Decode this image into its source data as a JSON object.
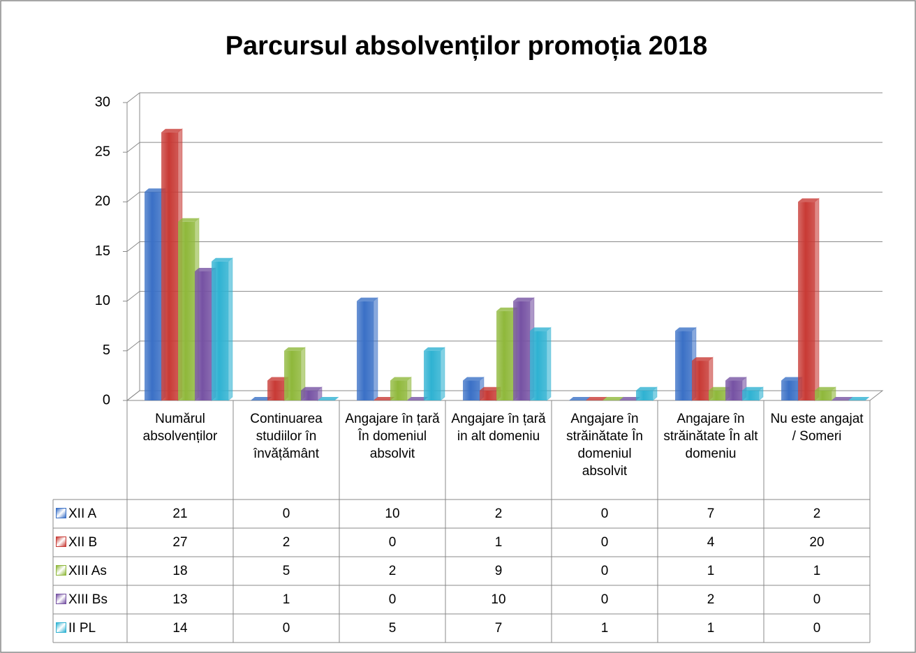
{
  "chart_data": {
    "type": "bar",
    "title": "Parcursul absolvenților  promoția 2018",
    "categories": [
      "Numărul absolvenților",
      "Continuarea studiilor în învățământ",
      "Angajare în țară În domeniul absolvit",
      "Angajare în țară in alt domeniu",
      "Angajare în străinătate În domeniul absolvit",
      "Angajare în străinătate În alt domeniu",
      "Nu este angajat / Someri"
    ],
    "series": [
      {
        "name": "XII A",
        "color": "#3a70c6",
        "values": [
          21,
          0,
          10,
          2,
          0,
          7,
          2
        ]
      },
      {
        "name": "XII B",
        "color": "#c83a35",
        "values": [
          27,
          2,
          0,
          1,
          0,
          4,
          20
        ]
      },
      {
        "name": "XIII As",
        "color": "#8fb83b",
        "values": [
          18,
          5,
          2,
          9,
          0,
          1,
          1
        ]
      },
      {
        "name": "XIII Bs",
        "color": "#7652a3",
        "values": [
          13,
          1,
          0,
          10,
          0,
          2,
          0
        ]
      },
      {
        "name": "II PL",
        "color": "#2fb2d2",
        "values": [
          14,
          0,
          5,
          7,
          1,
          1,
          0
        ]
      }
    ],
    "ylim": [
      0,
      30
    ],
    "yticks": [
      0,
      5,
      10,
      15,
      20,
      25,
      30
    ],
    "grid": true
  }
}
